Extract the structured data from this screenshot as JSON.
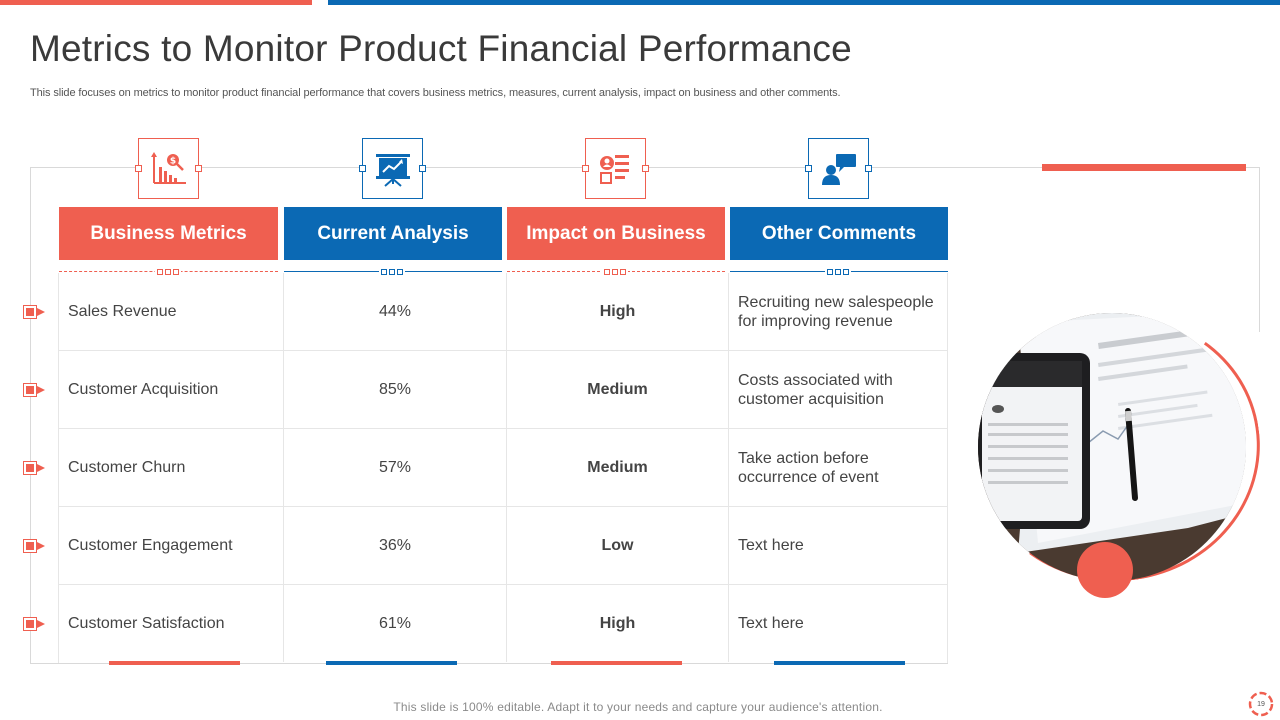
{
  "slide": {
    "title": "Metrics to Monitor Product Financial Performance",
    "subtitle": "This slide focuses on metrics to monitor product financial performance that covers business metrics, measures, current analysis, impact on business and other comments.",
    "footer": "This slide is 100% editable. Adapt it to your needs and capture your audience's attention.",
    "page_number": "19"
  },
  "columns": [
    {
      "label": "Business Metrics",
      "icon": "financial-chart-icon",
      "color": "#ef5f50"
    },
    {
      "label": "Current Analysis",
      "icon": "presentation-board-icon",
      "color": "#0b69b4"
    },
    {
      "label": "Impact on Business",
      "icon": "checklist-icon",
      "color": "#ef5f50"
    },
    {
      "label": "Other Comments",
      "icon": "user-chat-icon",
      "color": "#0b69b4"
    }
  ],
  "rows": [
    {
      "metric": "Sales Revenue",
      "analysis": "44%",
      "impact": "High",
      "comment": "Recruiting new salespeople for improving revenue"
    },
    {
      "metric": "Customer Acquisition",
      "analysis": "85%",
      "impact": "Medium",
      "comment": "Costs associated with customer acquisition"
    },
    {
      "metric": "Customer Churn",
      "analysis": "57%",
      "impact": "Medium",
      "comment": "Take action before occurrence of event"
    },
    {
      "metric": "Customer Engagement",
      "analysis": "36%",
      "impact": "Low",
      "comment": "Text here"
    },
    {
      "metric": "Customer Satisfaction",
      "analysis": "61%",
      "impact": "High",
      "comment": "Text here"
    }
  ],
  "colors": {
    "accent_red": "#ef5f50",
    "accent_blue": "#0b69b4"
  }
}
